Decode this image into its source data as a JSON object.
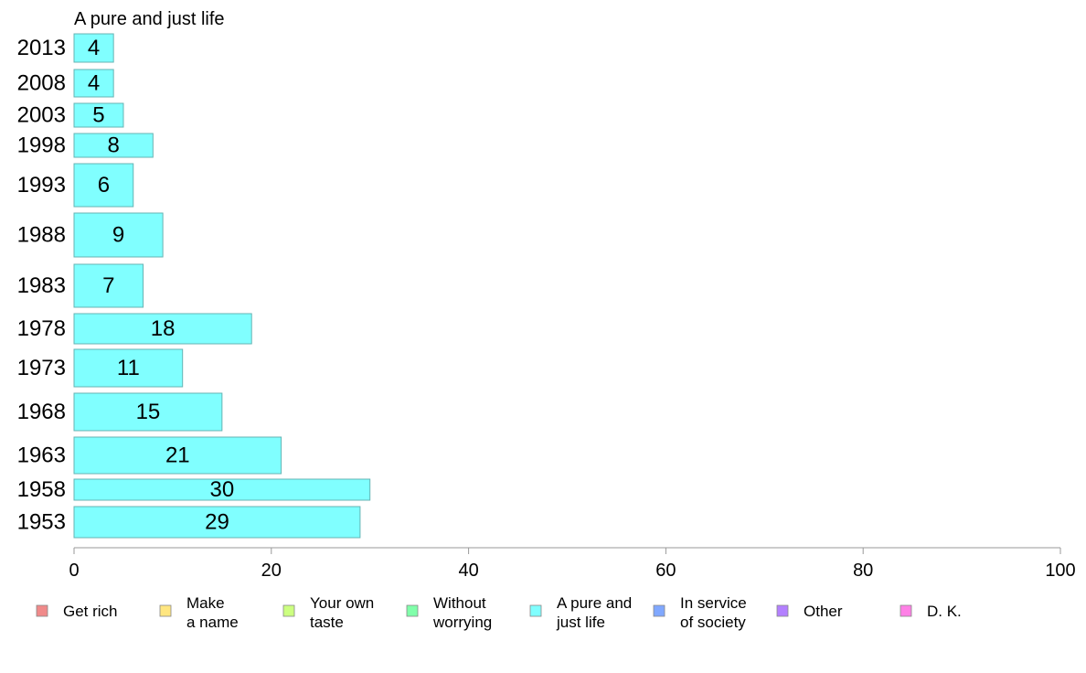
{
  "chart_data": {
    "type": "bar",
    "orientation": "horizontal",
    "title": "A pure and just life",
    "xlabel": "",
    "ylabel": "",
    "xlim": [
      0,
      100
    ],
    "xticks": [
      "0",
      "20",
      "40",
      "60",
      "80",
      "100"
    ],
    "grid": false,
    "categories": [
      "2013",
      "2008",
      "2003",
      "1998",
      "1993",
      "1988",
      "1983",
      "1978",
      "1973",
      "1968",
      "1963",
      "1958",
      "1953"
    ],
    "series": [
      {
        "name": "A pure and just life",
        "values": [
          4,
          4,
          5,
          8,
          6,
          9,
          7,
          18,
          11,
          15,
          21,
          30,
          29
        ],
        "labels": [
          "4",
          "4",
          "5",
          "8",
          "6",
          "9",
          "7",
          "18",
          "11",
          "15",
          "21",
          "30",
          "29"
        ],
        "color": "#80FFFF"
      }
    ],
    "legend": {
      "placement": "bottom",
      "items": [
        {
          "lines": [
            "Get rich"
          ],
          "color": "#F08A8A"
        },
        {
          "lines": [
            "Make",
            "a name"
          ],
          "color": "#FFE680"
        },
        {
          "lines": [
            "Your own",
            "taste"
          ],
          "color": "#CCFF80"
        },
        {
          "lines": [
            "Without",
            "worrying"
          ],
          "color": "#80FFAA"
        },
        {
          "lines": [
            "A pure and",
            "just life"
          ],
          "color": "#80FFFF"
        },
        {
          "lines": [
            "In service",
            "of society"
          ],
          "color": "#80A8FF"
        },
        {
          "lines": [
            "Other"
          ],
          "color": "#B380FF"
        },
        {
          "lines": [
            "D. K."
          ],
          "color": "#FF80E6"
        }
      ]
    }
  }
}
